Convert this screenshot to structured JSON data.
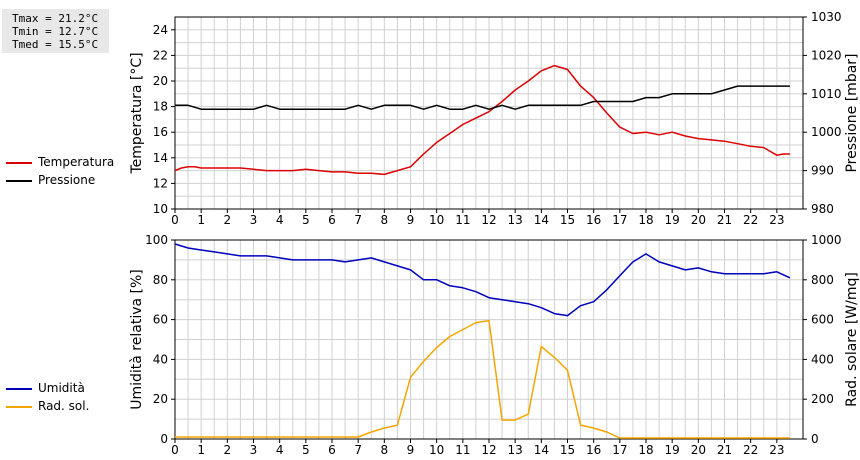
{
  "stats": {
    "tmax": "Tmax = 21.2°C",
    "tmin": "Tmin = 12.7°C",
    "tmed": "Tmed = 15.5°C"
  },
  "colors": {
    "red": "#dd0000",
    "black": "#000000",
    "blue": "#0000bb",
    "orange": "#f5a500",
    "grid": "#d0d0d0"
  },
  "legend_top": [
    {
      "label": "Temperatura",
      "color": "#dd0000"
    },
    {
      "label": "Pressione",
      "color": "#000000"
    }
  ],
  "legend_bottom": [
    {
      "label": "Umidità",
      "color": "#0000bb"
    },
    {
      "label": "Rad. sol.",
      "color": "#f5a500"
    }
  ],
  "chart_data": [
    {
      "type": "line",
      "x_ticks": [
        "0",
        "1",
        "2",
        "3",
        "4",
        "5",
        "6",
        "7",
        "8",
        "9",
        "10",
        "11",
        "12",
        "13",
        "14",
        "15",
        "16",
        "17",
        "18",
        "19",
        "20",
        "21",
        "22",
        "23"
      ],
      "xlim": [
        0,
        24
      ],
      "ylabel": "Temperatura [°C]",
      "ylim": [
        10,
        25
      ],
      "y_ticks": [
        "10",
        "12",
        "14",
        "16",
        "18",
        "20",
        "22",
        "24"
      ],
      "y2label": "Pressione [mbar]",
      "y2lim": [
        980,
        1030
      ],
      "y2_ticks": [
        "980",
        "990",
        "1000",
        "1010",
        "1020",
        "1030"
      ],
      "grid": true,
      "series": [
        {
          "name": "Temperatura",
          "axis": "left",
          "color": "#dd0000",
          "x": [
            0,
            0.25,
            0.5,
            0.75,
            1,
            1.5,
            2,
            2.5,
            3,
            3.5,
            4,
            4.5,
            5,
            5.5,
            6,
            6.5,
            7,
            7.5,
            8,
            8.5,
            9,
            9.5,
            10,
            10.5,
            11,
            11.5,
            12,
            12.5,
            13,
            13.5,
            14,
            14.5,
            15,
            15.5,
            16,
            16.5,
            17,
            17.5,
            18,
            18.5,
            19,
            19.5,
            20,
            20.5,
            21,
            21.5,
            22,
            22.5,
            23,
            23.25,
            23.5
          ],
          "y": [
            13.0,
            13.2,
            13.3,
            13.3,
            13.2,
            13.2,
            13.2,
            13.2,
            13.1,
            13.0,
            13.0,
            13.0,
            13.1,
            13.0,
            12.9,
            12.9,
            12.8,
            12.8,
            12.7,
            13.0,
            13.3,
            14.3,
            15.2,
            15.9,
            16.6,
            17.1,
            17.6,
            18.4,
            19.3,
            20.0,
            20.8,
            21.2,
            20.9,
            19.6,
            18.7,
            17.5,
            16.4,
            15.9,
            16.0,
            15.8,
            16.0,
            15.7,
            15.5,
            15.4,
            15.3,
            15.1,
            14.9,
            14.8,
            14.2,
            14.3,
            14.3
          ]
        },
        {
          "name": "Pressione",
          "axis": "right",
          "color": "#000000",
          "x": [
            0,
            0.5,
            1,
            1.5,
            2,
            2.5,
            3,
            3.5,
            4,
            4.5,
            5,
            5.5,
            6,
            6.5,
            7,
            7.5,
            8,
            8.5,
            9,
            9.5,
            10,
            10.5,
            11,
            11.5,
            12,
            12.5,
            13,
            13.5,
            14,
            14.5,
            15,
            15.5,
            16,
            16.5,
            17,
            17.5,
            18,
            18.5,
            19,
            19.5,
            20,
            20.5,
            21,
            21.5,
            22,
            22.5,
            23,
            23.5
          ],
          "y": [
            1007,
            1007,
            1006,
            1006,
            1006,
            1006,
            1006,
            1007,
            1006,
            1006,
            1006,
            1006,
            1006,
            1006,
            1007,
            1006,
            1007,
            1007,
            1007,
            1006,
            1007,
            1006,
            1006,
            1007,
            1006,
            1007,
            1006,
            1007,
            1007,
            1007,
            1007,
            1007,
            1008,
            1008,
            1008,
            1008,
            1009,
            1009,
            1010,
            1010,
            1010,
            1010,
            1011,
            1012,
            1012,
            1012,
            1012,
            1012
          ]
        }
      ]
    },
    {
      "type": "line",
      "x_ticks": [
        "0",
        "1",
        "2",
        "3",
        "4",
        "5",
        "6",
        "7",
        "8",
        "9",
        "10",
        "11",
        "12",
        "13",
        "14",
        "15",
        "16",
        "17",
        "18",
        "19",
        "20",
        "21",
        "22",
        "23"
      ],
      "xlim": [
        0,
        24
      ],
      "ylabel": "Umidità relativa [%]",
      "ylim": [
        0,
        100
      ],
      "y_ticks": [
        "0",
        "20",
        "40",
        "60",
        "80",
        "100"
      ],
      "y2label": "Rad. solare [W/mq]",
      "y2lim": [
        0,
        1000
      ],
      "y2_ticks": [
        "0",
        "200",
        "400",
        "600",
        "800",
        "1000"
      ],
      "grid": true,
      "series": [
        {
          "name": "Umidità",
          "axis": "left",
          "color": "#0000bb",
          "x": [
            0,
            0.5,
            1,
            1.5,
            2,
            2.5,
            3,
            3.5,
            4,
            4.5,
            5,
            5.5,
            6,
            6.5,
            7,
            7.5,
            8,
            8.5,
            9,
            9.5,
            10,
            10.5,
            11,
            11.5,
            12,
            12.5,
            13,
            13.5,
            14,
            14.5,
            15,
            15.5,
            16,
            16.5,
            17,
            17.5,
            18,
            18.5,
            19,
            19.5,
            20,
            20.5,
            21,
            21.5,
            22,
            22.5,
            23,
            23.5
          ],
          "y": [
            98,
            96,
            95,
            94,
            93,
            92,
            92,
            92,
            91,
            90,
            90,
            90,
            90,
            89,
            90,
            91,
            89,
            87,
            85,
            80,
            80,
            77,
            76,
            74,
            71,
            70,
            69,
            68,
            66,
            63,
            62,
            67,
            69,
            75,
            82,
            89,
            93,
            89,
            87,
            85,
            86,
            84,
            83,
            83,
            83,
            83,
            84,
            81
          ]
        },
        {
          "name": "Rad. sol.",
          "axis": "right",
          "color": "#f5a500",
          "x": [
            0,
            1,
            2,
            3,
            4,
            5,
            6,
            7,
            7.5,
            8,
            8.5,
            9,
            9.5,
            10,
            10.5,
            11,
            11.5,
            12,
            12.5,
            13,
            13.5,
            14,
            14.5,
            15,
            15.5,
            16,
            16.5,
            17,
            18,
            19,
            20,
            21,
            22,
            23,
            23.5
          ],
          "y": [
            10,
            10,
            10,
            10,
            10,
            10,
            10,
            10,
            35,
            55,
            70,
            310,
            390,
            460,
            515,
            550,
            585,
            595,
            95,
            95,
            125,
            465,
            410,
            345,
            70,
            55,
            35,
            5,
            5,
            5,
            5,
            5,
            5,
            5,
            5
          ]
        }
      ]
    }
  ]
}
